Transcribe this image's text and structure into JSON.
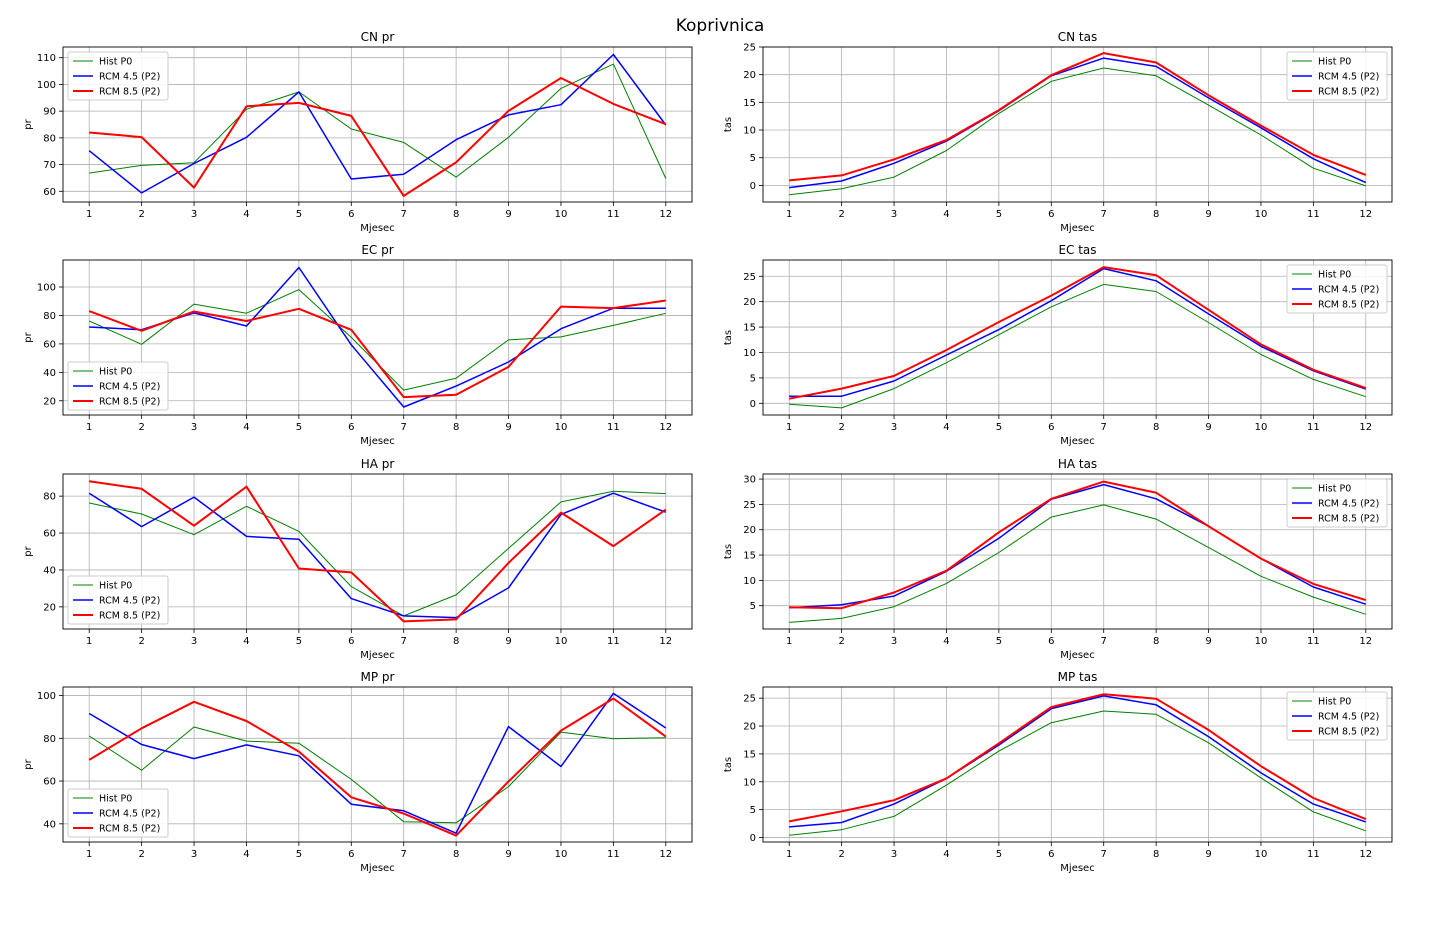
{
  "figure_title": "Koprivnica",
  "colors": {
    "hist": "#008000",
    "rcm45": "#0000ff",
    "rcm85": "#ff0000",
    "grid": "#b0b0b0",
    "legend_border": "#cccccc"
  },
  "chart_data": [
    {
      "type": "line",
      "title": "CN pr",
      "xlabel": "Mjesec",
      "ylabel": "pr",
      "x": [
        1,
        2,
        3,
        4,
        5,
        6,
        7,
        8,
        9,
        10,
        11,
        12
      ],
      "xlim": [
        0.5,
        12.5
      ],
      "ylim": [
        56,
        114
      ],
      "yticks": [
        60,
        70,
        80,
        90,
        100,
        110
      ],
      "grid": true,
      "legend_position": "upper-left",
      "series": [
        {
          "name": "Hist P0",
          "color": "#008000",
          "width": 1,
          "values": [
            66.8,
            69.7,
            70.7,
            90.7,
            97.2,
            83.3,
            78.3,
            65.3,
            80.2,
            98.5,
            107.6,
            64.8
          ]
        },
        {
          "name": "RCM 4.5 (P2)",
          "color": "#0000ff",
          "width": 1.5,
          "values": [
            75.2,
            59.4,
            70.4,
            80.2,
            97.2,
            64.6,
            66.4,
            79.3,
            88.6,
            92.4,
            111.2,
            84.8
          ]
        },
        {
          "name": "RCM 8.5 (P2)",
          "color": "#ff0000",
          "width": 2,
          "values": [
            82.0,
            80.3,
            61.4,
            91.8,
            93.1,
            88.2,
            58.3,
            70.8,
            90.1,
            102.4,
            92.7,
            85.1
          ]
        }
      ]
    },
    {
      "type": "line",
      "title": "CN tas",
      "xlabel": "Mjesec",
      "ylabel": "tas",
      "x": [
        1,
        2,
        3,
        4,
        5,
        6,
        7,
        8,
        9,
        10,
        11,
        12
      ],
      "xlim": [
        0.5,
        12.5
      ],
      "ylim": [
        -3,
        25
      ],
      "yticks": [
        0,
        5,
        10,
        15,
        20,
        25
      ],
      "grid": true,
      "legend_position": "upper-right",
      "series": [
        {
          "name": "Hist P0",
          "color": "#008000",
          "width": 1,
          "values": [
            -1.7,
            -0.6,
            1.5,
            6.3,
            13.0,
            18.8,
            21.2,
            19.8,
            14.5,
            9.1,
            3.1,
            -0.1
          ]
        },
        {
          "name": "RCM 4.5 (P2)",
          "color": "#0000ff",
          "width": 1.5,
          "values": [
            -0.4,
            0.8,
            4.0,
            8.0,
            13.5,
            19.8,
            23.0,
            21.5,
            15.8,
            10.4,
            4.8,
            0.5
          ]
        },
        {
          "name": "RCM 8.5 (P2)",
          "color": "#ff0000",
          "width": 2,
          "values": [
            0.9,
            1.8,
            4.7,
            8.2,
            13.6,
            19.9,
            23.9,
            22.2,
            16.3,
            10.8,
            5.5,
            1.9
          ]
        }
      ]
    },
    {
      "type": "line",
      "title": "EC pr",
      "xlabel": "Mjesec",
      "ylabel": "pr",
      "x": [
        1,
        2,
        3,
        4,
        5,
        6,
        7,
        8,
        9,
        10,
        11,
        12
      ],
      "xlim": [
        0.5,
        12.5
      ],
      "ylim": [
        10,
        119
      ],
      "yticks": [
        20,
        40,
        60,
        80,
        100
      ],
      "grid": true,
      "legend_position": "lower-left",
      "series": [
        {
          "name": "Hist P0",
          "color": "#008000",
          "width": 1,
          "values": [
            76.1,
            59.7,
            88.0,
            81.6,
            98.2,
            64.6,
            27.5,
            35.9,
            62.8,
            64.9,
            73.0,
            81.5
          ]
        },
        {
          "name": "RCM 4.5 (P2)",
          "color": "#0000ff",
          "width": 1.5,
          "values": [
            71.9,
            70.0,
            81.8,
            72.6,
            113.7,
            59.4,
            15.6,
            30.3,
            47.3,
            70.7,
            85.1,
            85.1
          ]
        },
        {
          "name": "RCM 8.5 (P2)",
          "color": "#ff0000",
          "width": 2,
          "values": [
            83.1,
            69.2,
            82.8,
            76.1,
            84.7,
            69.9,
            22.6,
            24.2,
            43.8,
            86.2,
            85.2,
            90.5
          ]
        }
      ]
    },
    {
      "type": "line",
      "title": "EC tas",
      "xlabel": "Mjesec",
      "ylabel": "tas",
      "x": [
        1,
        2,
        3,
        4,
        5,
        6,
        7,
        8,
        9,
        10,
        11,
        12
      ],
      "xlim": [
        0.5,
        12.5
      ],
      "ylim": [
        -2.3,
        28.2
      ],
      "yticks": [
        0,
        5,
        10,
        15,
        20,
        25
      ],
      "grid": true,
      "legend_position": "upper-right",
      "series": [
        {
          "name": "Hist P0",
          "color": "#008000",
          "width": 1,
          "values": [
            -0.2,
            -0.9,
            2.9,
            8.0,
            13.5,
            19.0,
            23.4,
            22.0,
            15.9,
            9.6,
            4.7,
            1.3
          ]
        },
        {
          "name": "RCM 4.5 (P2)",
          "color": "#0000ff",
          "width": 1.5,
          "values": [
            1.4,
            1.4,
            4.4,
            9.5,
            14.5,
            20.2,
            26.5,
            24.1,
            17.6,
            11.2,
            6.4,
            2.8
          ]
        },
        {
          "name": "RCM 8.5 (P2)",
          "color": "#ff0000",
          "width": 2,
          "values": [
            0.9,
            2.9,
            5.4,
            10.5,
            16.0,
            21.2,
            26.8,
            25.2,
            18.4,
            11.6,
            6.6,
            3.0
          ]
        }
      ]
    },
    {
      "type": "line",
      "title": "HA pr",
      "xlabel": "Mjesec",
      "ylabel": "pr",
      "x": [
        1,
        2,
        3,
        4,
        5,
        6,
        7,
        8,
        9,
        10,
        11,
        12
      ],
      "xlim": [
        0.5,
        12.5
      ],
      "ylim": [
        8,
        92
      ],
      "yticks": [
        20,
        40,
        60,
        80
      ],
      "grid": true,
      "legend_position": "lower-left",
      "series": [
        {
          "name": "Hist P0",
          "color": "#008000",
          "width": 1,
          "values": [
            76.3,
            70.3,
            59.1,
            74.5,
            60.9,
            31.0,
            15.1,
            26.5,
            51.7,
            76.9,
            82.6,
            81.4
          ]
        },
        {
          "name": "RCM 4.5 (P2)",
          "color": "#0000ff",
          "width": 1.5,
          "values": [
            81.6,
            63.5,
            79.5,
            58.2,
            56.6,
            24.5,
            15.1,
            14.2,
            30.3,
            70.1,
            81.6,
            71.3
          ]
        },
        {
          "name": "RCM 8.5 (P2)",
          "color": "#ff0000",
          "width": 2,
          "values": [
            88.1,
            84.0,
            64.0,
            85.1,
            40.8,
            38.7,
            12.1,
            13.2,
            43.8,
            71.1,
            52.9,
            72.7
          ]
        }
      ]
    },
    {
      "type": "line",
      "title": "HA tas",
      "xlabel": "Mjesec",
      "ylabel": "tas",
      "x": [
        1,
        2,
        3,
        4,
        5,
        6,
        7,
        8,
        9,
        10,
        11,
        12
      ],
      "xlim": [
        0.5,
        12.5
      ],
      "ylim": [
        0.4,
        31
      ],
      "yticks": [
        5,
        10,
        15,
        20,
        25,
        30
      ],
      "grid": true,
      "legend_position": "upper-right",
      "series": [
        {
          "name": "Hist P0",
          "color": "#008000",
          "width": 1,
          "values": [
            1.7,
            2.5,
            4.8,
            9.4,
            15.5,
            22.5,
            24.9,
            22.1,
            16.5,
            10.8,
            6.7,
            3.3
          ]
        },
        {
          "name": "RCM 4.5 (P2)",
          "color": "#0000ff",
          "width": 1.5,
          "values": [
            4.6,
            5.2,
            6.9,
            11.8,
            18.3,
            26.0,
            28.9,
            26.1,
            20.7,
            14.3,
            8.7,
            5.3
          ]
        },
        {
          "name": "RCM 8.5 (P2)",
          "color": "#ff0000",
          "width": 2,
          "values": [
            4.7,
            4.5,
            7.6,
            11.9,
            19.5,
            26.1,
            29.5,
            27.3,
            20.7,
            14.3,
            9.3,
            6.1
          ]
        }
      ]
    },
    {
      "type": "line",
      "title": "MP pr",
      "xlabel": "Mjesec",
      "ylabel": "pr",
      "x": [
        1,
        2,
        3,
        4,
        5,
        6,
        7,
        8,
        9,
        10,
        11,
        12
      ],
      "xlim": [
        0.5,
        12.5
      ],
      "ylim": [
        31.5,
        104
      ],
      "yticks": [
        40,
        60,
        80,
        100
      ],
      "grid": true,
      "legend_position": "lower-left",
      "series": [
        {
          "name": "Hist P0",
          "color": "#008000",
          "width": 1,
          "values": [
            81.1,
            65.1,
            85.3,
            78.7,
            77.7,
            60.8,
            41.0,
            40.5,
            57.4,
            82.9,
            79.8,
            80.3
          ]
        },
        {
          "name": "RCM 4.5 (P2)",
          "color": "#0000ff",
          "width": 1.5,
          "values": [
            91.6,
            77.1,
            70.5,
            76.9,
            71.8,
            49.2,
            46.1,
            35.6,
            85.5,
            66.8,
            101.0,
            84.8
          ]
        },
        {
          "name": "RCM 8.5 (P2)",
          "color": "#ff0000",
          "width": 2,
          "values": [
            69.9,
            84.7,
            97.1,
            88.1,
            73.8,
            52.4,
            44.8,
            34.5,
            59.8,
            83.6,
            98.6,
            80.8
          ]
        }
      ]
    },
    {
      "type": "line",
      "title": "MP tas",
      "xlabel": "Mjesec",
      "ylabel": "tas",
      "x": [
        1,
        2,
        3,
        4,
        5,
        6,
        7,
        8,
        9,
        10,
        11,
        12
      ],
      "xlim": [
        0.5,
        12.5
      ],
      "ylim": [
        -0.8,
        27
      ],
      "yticks": [
        0,
        5,
        10,
        15,
        20,
        25
      ],
      "grid": true,
      "legend_position": "upper-right",
      "series": [
        {
          "name": "Hist P0",
          "color": "#008000",
          "width": 1,
          "values": [
            0.4,
            1.4,
            3.8,
            9.4,
            15.5,
            20.6,
            22.7,
            22.1,
            17.0,
            10.7,
            4.6,
            1.2
          ]
        },
        {
          "name": "RCM 4.5 (P2)",
          "color": "#0000ff",
          "width": 1.5,
          "values": [
            1.9,
            2.7,
            6.0,
            10.6,
            16.6,
            23.1,
            25.4,
            23.8,
            18.1,
            11.6,
            6.0,
            2.8
          ]
        },
        {
          "name": "RCM 8.5 (P2)",
          "color": "#ff0000",
          "width": 2,
          "values": [
            2.9,
            4.7,
            6.7,
            10.6,
            16.9,
            23.4,
            25.7,
            24.9,
            19.3,
            12.8,
            7.1,
            3.3
          ]
        }
      ]
    }
  ]
}
